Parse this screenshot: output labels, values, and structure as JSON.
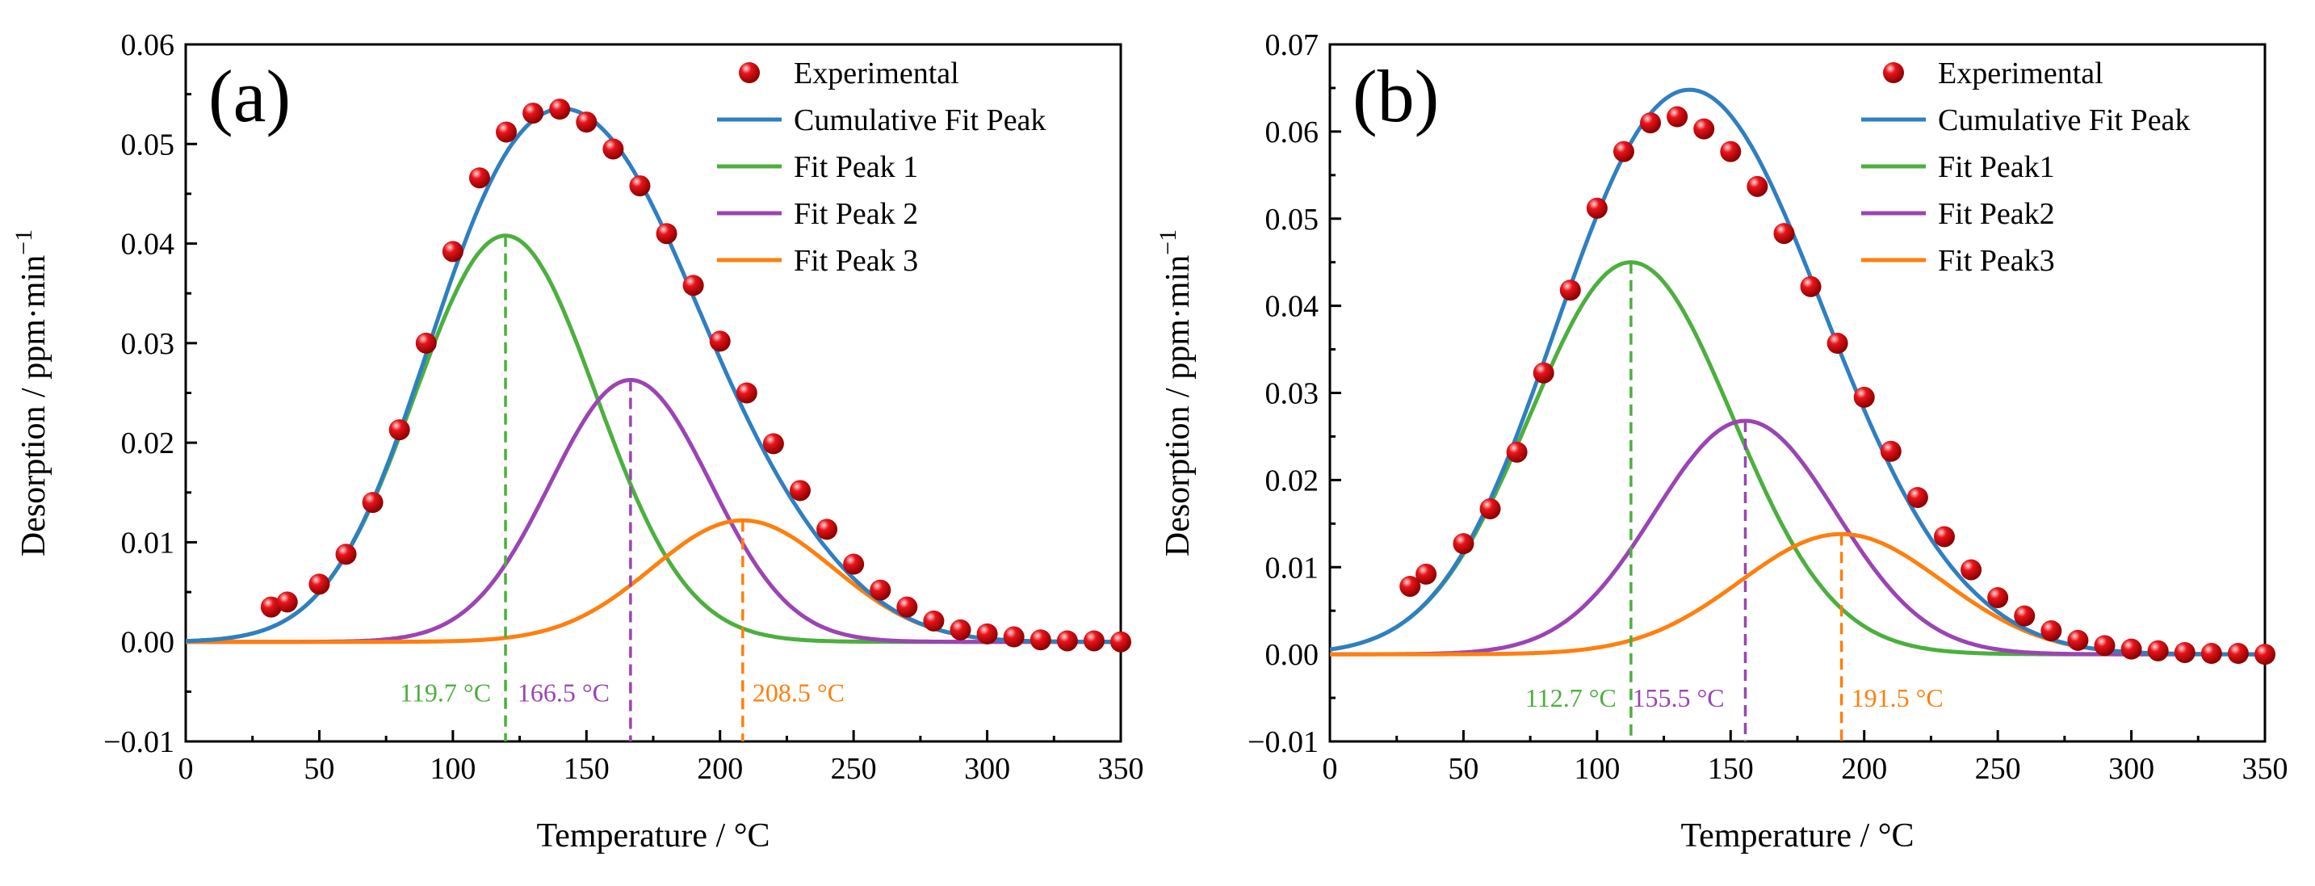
{
  "colors": {
    "experimental": "#e8141a",
    "cumulative": "#2f7fc1",
    "peak1": "#4caf3e",
    "peak2": "#9b44b4",
    "peak3": "#ff7f0e"
  },
  "chart_data": [
    {
      "type": "line",
      "panel_label": "(a)",
      "xlabel": "Temperature / °C",
      "ylabel": "Desorption / ppm·min",
      "ylabel_sup": "−1",
      "xlim": [
        0,
        350
      ],
      "ylim": [
        -0.01,
        0.06
      ],
      "xticks": [
        0,
        50,
        100,
        150,
        200,
        250,
        300,
        350
      ],
      "yticks": [
        -0.01,
        0.0,
        0.01,
        0.02,
        0.03,
        0.04,
        0.05,
        0.06
      ],
      "ytick_labels": [
        "−0.01",
        "0.00",
        "0.01",
        "0.02",
        "0.03",
        "0.04",
        "0.05",
        "0.06"
      ],
      "legend": [
        "Experimental",
        "Cumulative Fit Peak",
        "Fit Peak 1",
        "Fit Peak 2",
        "Fit Peak 3"
      ],
      "legend_position": "top-right",
      "peaks": [
        {
          "center": 119.7,
          "amplitude": 0.0408,
          "sigma": 34
        },
        {
          "center": 166.5,
          "amplitude": 0.0263,
          "sigma": 30
        },
        {
          "center": 208.5,
          "amplitude": 0.0122,
          "sigma": 34
        }
      ],
      "annotations": [
        "119.7 °C",
        "166.5 °C",
        "208.5 °C"
      ],
      "experimental": {
        "x": [
          32,
          38,
          50,
          60,
          70,
          80,
          90,
          100,
          110,
          120,
          130,
          140,
          150,
          160,
          170,
          180,
          190,
          200,
          210,
          220,
          230,
          240,
          250,
          260,
          270,
          280,
          290,
          300,
          310,
          320,
          330,
          340,
          350
        ],
        "y": [
          0.0035,
          0.004,
          0.0058,
          0.0088,
          0.014,
          0.0213,
          0.03,
          0.0392,
          0.0466,
          0.0512,
          0.0531,
          0.0535,
          0.0522,
          0.0495,
          0.0458,
          0.041,
          0.0358,
          0.0302,
          0.025,
          0.0199,
          0.0152,
          0.0113,
          0.0078,
          0.0052,
          0.0035,
          0.0021,
          0.0012,
          0.0008,
          0.0005,
          0.0002,
          0.0001,
          0.0001,
          0.0
        ]
      }
    },
    {
      "type": "line",
      "panel_label": "(b)",
      "xlabel": "Temperature / °C",
      "ylabel": "Desorption / ppm·min",
      "ylabel_sup": "−1",
      "xlim": [
        0,
        350
      ],
      "ylim": [
        -0.01,
        0.07
      ],
      "xticks": [
        0,
        50,
        100,
        150,
        200,
        250,
        300,
        350
      ],
      "yticks": [
        -0.01,
        0.0,
        0.01,
        0.02,
        0.03,
        0.04,
        0.05,
        0.06,
        0.07
      ],
      "ytick_labels": [
        "−0.01",
        "0.00",
        "0.01",
        "0.02",
        "0.03",
        "0.04",
        "0.05",
        "0.06",
        "0.07"
      ],
      "legend": [
        "Experimental",
        "Cumulative Fit Peak",
        "Fit Peak1",
        "Fit Peak2",
        "Fit Peak3"
      ],
      "legend_position": "top-right",
      "peaks": [
        {
          "center": 112.7,
          "amplitude": 0.045,
          "sigma": 38
        },
        {
          "center": 155.5,
          "amplitude": 0.0268,
          "sigma": 34
        },
        {
          "center": 191.5,
          "amplitude": 0.0138,
          "sigma": 38
        }
      ],
      "annotations": [
        "112.7 °C",
        "155.5 °C",
        "191.5 °C"
      ],
      "experimental": {
        "x": [
          30,
          36,
          50,
          60,
          70,
          80,
          90,
          100,
          110,
          120,
          130,
          140,
          150,
          160,
          170,
          180,
          190,
          200,
          210,
          220,
          230,
          240,
          250,
          260,
          270,
          280,
          290,
          300,
          310,
          320,
          330,
          340,
          350
        ],
        "y": [
          0.0078,
          0.0092,
          0.0127,
          0.0167,
          0.0232,
          0.0323,
          0.0418,
          0.0512,
          0.0577,
          0.061,
          0.0617,
          0.0603,
          0.0577,
          0.0537,
          0.0483,
          0.0422,
          0.0357,
          0.0295,
          0.0233,
          0.018,
          0.0135,
          0.0097,
          0.0065,
          0.0044,
          0.0027,
          0.0016,
          0.001,
          0.0006,
          0.0004,
          0.0002,
          0.0001,
          0.0001,
          0.0
        ]
      }
    }
  ]
}
